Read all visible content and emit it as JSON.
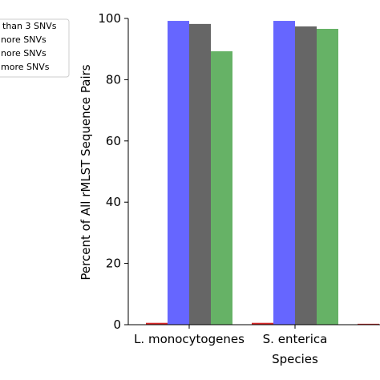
{
  "chart_data": {
    "type": "bar",
    "title": "",
    "xlabel": "Species",
    "ylabel": "Percent of All rMLST Sequence Pairs",
    "ylim": [
      0,
      100
    ],
    "yticks": [
      "0",
      "20",
      "40",
      "60",
      "80",
      "100"
    ],
    "categories": [
      "L. monocytogenes",
      "S. enterica",
      ""
    ],
    "series": [
      {
        "name": "than 3 SNVs",
        "color": "#d62728",
        "values": [
          0.6,
          0.6,
          0.3
        ]
      },
      {
        "name": "nore SNVs",
        "color": "#6666ff",
        "values": [
          99.2,
          99.2,
          null
        ]
      },
      {
        "name": "nore SNVs",
        "color": "#666666",
        "values": [
          98.2,
          97.4,
          null
        ]
      },
      {
        "name": "more SNVs",
        "color": "#66b266",
        "values": [
          89.3,
          96.6,
          null
        ]
      }
    ],
    "legend_position": "top-left",
    "grid": false
  }
}
